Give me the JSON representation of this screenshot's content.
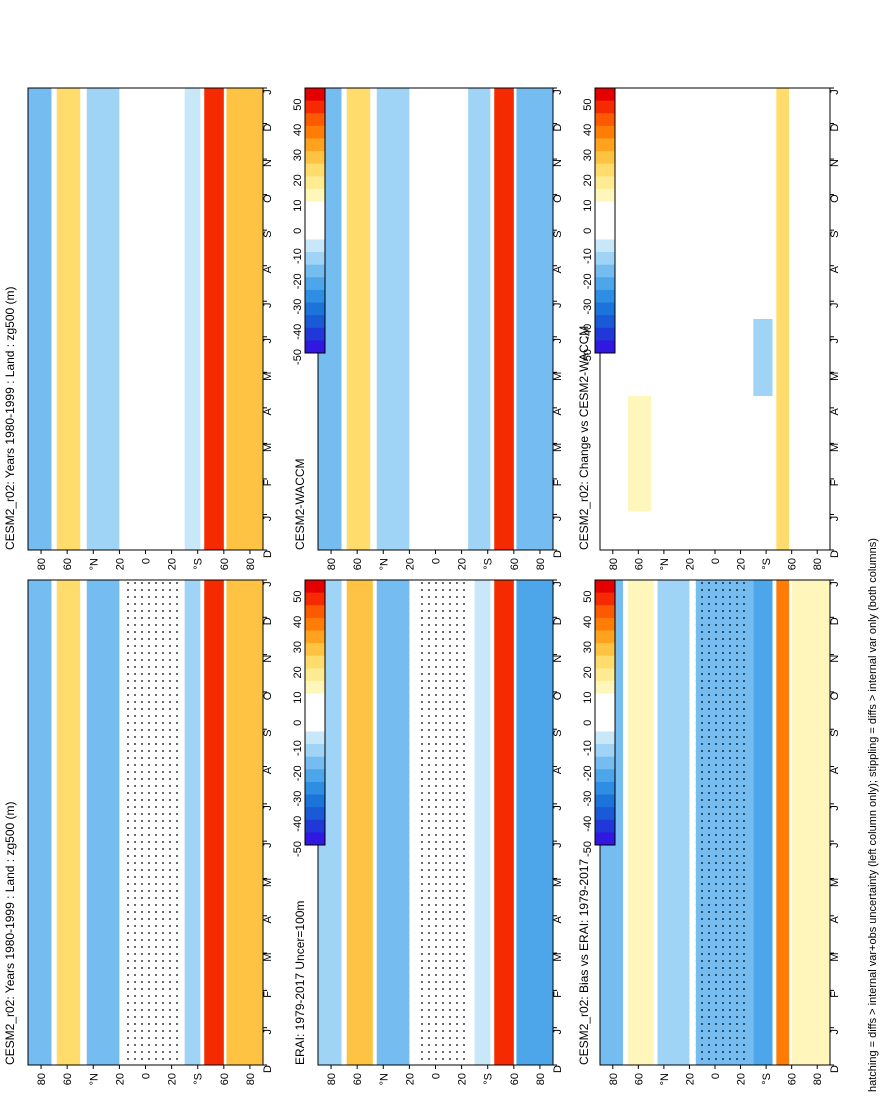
{
  "figure": {
    "caption": "hatching = diffs > internal var+obs uncertainty (left column only); stippling = diffs > internal var only (both columns)"
  },
  "colors": {
    "scale": [
      "#e50000",
      "#f52a00",
      "#fb5a00",
      "#ff7d07",
      "#ffa31f",
      "#ffc344",
      "#ffdc6b",
      "#ffec92",
      "#fff6bb",
      "#ffffff",
      "#ffffff",
      "#ffffff",
      "#c8e8fa",
      "#9fd4f6",
      "#75bdf0",
      "#4ea6ea",
      "#2e8ee3",
      "#1c74db",
      "#1a5ad6",
      "#2038d8",
      "#3018e0"
    ],
    "stipple": "#000000"
  },
  "chart_data": [
    {
      "id": "p1",
      "type": "heatmap",
      "title": "CESM2_r02: Years 1980-1999 : Land : zg500 (m)",
      "x_ticks": [
        "D",
        "J",
        "F",
        "M",
        "A",
        "M",
        "J",
        "J",
        "A",
        "S",
        "O",
        "N",
        "D",
        "J"
      ],
      "y_ticks": [
        "80",
        "60",
        "°N",
        "20",
        "0",
        "20",
        "°S",
        "60",
        "80"
      ],
      "stippled": true,
      "regions": [
        {
          "label": "north-polar",
          "lat_range": [
            90,
            72
          ],
          "months": [
            0,
            12
          ],
          "value": -18
        },
        {
          "label": "north-midlat",
          "lat_range": [
            68,
            50
          ],
          "months": [
            0,
            12
          ],
          "value": 20
        },
        {
          "label": "north-subtropics",
          "lat_range": [
            45,
            20
          ],
          "months": [
            0,
            12
          ],
          "value": -18
        },
        {
          "label": "tropics",
          "lat_range": [
            15,
            -20
          ],
          "months": [
            0,
            12
          ],
          "value": 0
        },
        {
          "label": "south-subpolar",
          "lat_range": [
            -30,
            -42
          ],
          "months": [
            0,
            12
          ],
          "value": -15
        },
        {
          "label": "south-highlat",
          "lat_range": [
            -45,
            -60
          ],
          "months": [
            0,
            12
          ],
          "value": 45
        },
        {
          "label": "south-polar",
          "lat_range": [
            -62,
            -90
          ],
          "months": [
            0,
            12
          ],
          "value": 25
        }
      ]
    },
    {
      "id": "p2",
      "type": "heatmap",
      "title": "CESM2_r02: Years 1980-1999 : Land : zg500 (m)",
      "x_ticks": [
        "D",
        "J",
        "F",
        "M",
        "A",
        "M",
        "J",
        "J",
        "A",
        "S",
        "O",
        "N",
        "D",
        "J"
      ],
      "y_ticks": [
        "80",
        "60",
        "°N",
        "20",
        "0",
        "20",
        "°S",
        "60",
        "80"
      ],
      "stippled": false,
      "regions": [
        {
          "label": "north-polar",
          "lat_range": [
            90,
            72
          ],
          "months": [
            0,
            12
          ],
          "value": -18
        },
        {
          "label": "north-midlat",
          "lat_range": [
            68,
            50
          ],
          "months": [
            0,
            12
          ],
          "value": 20
        },
        {
          "label": "north-subtropics",
          "lat_range": [
            45,
            20
          ],
          "months": [
            0,
            12
          ],
          "value": -15
        },
        {
          "label": "tropics",
          "lat_range": [
            15,
            -20
          ],
          "months": [
            0,
            12
          ],
          "value": 0
        },
        {
          "label": "south-subpolar",
          "lat_range": [
            -30,
            -42
          ],
          "months": [
            0,
            12
          ],
          "value": -12
        },
        {
          "label": "south-highlat",
          "lat_range": [
            -45,
            -60
          ],
          "months": [
            0,
            12
          ],
          "value": 45
        },
        {
          "label": "south-polar",
          "lat_range": [
            -62,
            -90
          ],
          "months": [
            0,
            12
          ],
          "value": 25
        }
      ]
    },
    {
      "id": "p3",
      "type": "heatmap",
      "title": "ERAI: 1979-2017 Uncer=100m",
      "x_ticks": [
        "D",
        "J",
        "F",
        "M",
        "A",
        "M",
        "J",
        "J",
        "A",
        "S",
        "O",
        "N",
        "D",
        "J"
      ],
      "y_ticks": [
        "80",
        "60",
        "°N",
        "20",
        "0",
        "20",
        "°S",
        "60",
        "80"
      ],
      "stippled": true,
      "regions": [
        {
          "label": "north-polar",
          "lat_range": [
            90,
            72
          ],
          "months": [
            0,
            12
          ],
          "value": -15
        },
        {
          "label": "north-midlat",
          "lat_range": [
            68,
            48
          ],
          "months": [
            0,
            12
          ],
          "value": 25
        },
        {
          "label": "north-subtropics",
          "lat_range": [
            45,
            20
          ],
          "months": [
            0,
            12
          ],
          "value": -20
        },
        {
          "label": "tropics",
          "lat_range": [
            15,
            -20
          ],
          "months": [
            0,
            12
          ],
          "value": 0
        },
        {
          "label": "south-subpolar",
          "lat_range": [
            -30,
            -42
          ],
          "months": [
            0,
            12
          ],
          "value": -10
        },
        {
          "label": "south-highlat",
          "lat_range": [
            -45,
            -60
          ],
          "months": [
            0,
            12
          ],
          "value": 45
        },
        {
          "label": "south-polar",
          "lat_range": [
            -62,
            -90
          ],
          "months": [
            0,
            12
          ],
          "value": -25
        }
      ]
    },
    {
      "id": "p4",
      "type": "heatmap",
      "title": "CESM2-WACCM",
      "x_ticks": [
        "D",
        "J",
        "F",
        "M",
        "A",
        "M",
        "J",
        "J",
        "A",
        "S",
        "O",
        "N",
        "D",
        "J"
      ],
      "y_ticks": [
        "80",
        "60",
        "°N",
        "20",
        "0",
        "20",
        "°S",
        "60",
        "80"
      ],
      "stippled": false,
      "regions": [
        {
          "label": "north-polar",
          "lat_range": [
            90,
            72
          ],
          "months": [
            0,
            12
          ],
          "value": -18
        },
        {
          "label": "north-midlat",
          "lat_range": [
            68,
            50
          ],
          "months": [
            0,
            12
          ],
          "value": 20
        },
        {
          "label": "north-subtropics",
          "lat_range": [
            45,
            20
          ],
          "months": [
            0,
            12
          ],
          "value": -15
        },
        {
          "label": "tropics",
          "lat_range": [
            15,
            -20
          ],
          "months": [
            0,
            12
          ],
          "value": 0
        },
        {
          "label": "south-subpolar",
          "lat_range": [
            -25,
            -42
          ],
          "months": [
            0,
            12
          ],
          "value": -15
        },
        {
          "label": "south-highlat",
          "lat_range": [
            -45,
            -60
          ],
          "months": [
            0,
            12
          ],
          "value": 45
        },
        {
          "label": "south-polar",
          "lat_range": [
            -62,
            -90
          ],
          "months": [
            0,
            12
          ],
          "value": -20
        }
      ]
    },
    {
      "id": "p5",
      "type": "heatmap",
      "title": "CESM2_r02: Bias vs ERAI: 1979-2017",
      "x_ticks": [
        "D",
        "J",
        "F",
        "M",
        "A",
        "M",
        "J",
        "J",
        "A",
        "S",
        "O",
        "N",
        "D",
        "J"
      ],
      "y_ticks": [
        "80",
        "60",
        "°N",
        "20",
        "0",
        "20",
        "°S",
        "60",
        "80"
      ],
      "stippled": true,
      "regions": [
        {
          "label": "north-polar",
          "lat_range": [
            90,
            72
          ],
          "months": [
            0,
            12
          ],
          "value": -20
        },
        {
          "label": "north-midlat",
          "lat_range": [
            68,
            48
          ],
          "months": [
            0,
            12
          ],
          "value": 10
        },
        {
          "label": "north-subtropics",
          "lat_range": [
            45,
            20
          ],
          "months": [
            0,
            12
          ],
          "value": -15
        },
        {
          "label": "tropics",
          "lat_range": [
            15,
            -30
          ],
          "months": [
            0,
            12
          ],
          "value": -18
        },
        {
          "label": "south-subpolar",
          "lat_range": [
            -30,
            -45
          ],
          "months": [
            0,
            12
          ],
          "value": -25
        },
        {
          "label": "south-highlat",
          "lat_range": [
            -48,
            -58
          ],
          "months": [
            0,
            12
          ],
          "value": 35
        },
        {
          "label": "south-polar",
          "lat_range": [
            -60,
            -90
          ],
          "months": [
            0,
            12
          ],
          "value": 10
        }
      ]
    },
    {
      "id": "p6",
      "type": "heatmap",
      "title": "CESM2_r02: Change vs CESM2-WACCM",
      "x_ticks": [
        "D",
        "J",
        "F",
        "M",
        "A",
        "M",
        "J",
        "J",
        "A",
        "S",
        "O",
        "N",
        "D",
        "J"
      ],
      "y_ticks": [
        "80",
        "60",
        "°N",
        "20",
        "0",
        "20",
        "°S",
        "60",
        "80"
      ],
      "stippled": false,
      "regions": [
        {
          "label": "north-polar",
          "lat_range": [
            90,
            72
          ],
          "months": [
            0,
            12
          ],
          "value": 0
        },
        {
          "label": "north-midlat",
          "lat_range": [
            68,
            50
          ],
          "months": [
            1,
            4
          ],
          "value": 10
        },
        {
          "label": "north-subtropics",
          "lat_range": [
            45,
            20
          ],
          "months": [
            0,
            12
          ],
          "value": 0
        },
        {
          "label": "tropics",
          "lat_range": [
            15,
            -25
          ],
          "months": [
            0,
            12
          ],
          "value": 0
        },
        {
          "label": "south-subpolar",
          "lat_range": [
            -30,
            -45
          ],
          "months": [
            4,
            6
          ],
          "value": -15
        },
        {
          "label": "south-highlat",
          "lat_range": [
            -48,
            -58
          ],
          "months": [
            0,
            12
          ],
          "value": 20
        },
        {
          "label": "south-polar",
          "lat_range": [
            -60,
            -90
          ],
          "months": [
            0,
            12
          ],
          "value": 0
        }
      ]
    }
  ],
  "colorbars": [
    {
      "id": "cb1",
      "panel": "p1",
      "ticks": [
        "50",
        "40",
        "30",
        "20",
        "10",
        "0",
        "-10",
        "-20",
        "-30",
        "-40",
        "-50"
      ]
    },
    {
      "id": "cb2",
      "panel": "p2",
      "ticks": [
        "50",
        "40",
        "30",
        "20",
        "10",
        "0",
        "-10",
        "-20",
        "-30",
        "-40",
        "-50"
      ]
    },
    {
      "id": "cb3",
      "panel": "p3",
      "ticks": [
        "50",
        "40",
        "30",
        "20",
        "10",
        "0",
        "-10",
        "-20",
        "-30",
        "-40",
        "-50"
      ]
    },
    {
      "id": "cb4",
      "panel": "p4",
      "ticks": [
        "50",
        "40",
        "30",
        "20",
        "10",
        "0",
        "-10",
        "-20",
        "-30",
        "-40",
        "-50"
      ]
    },
    {
      "id": "cb5",
      "panel": "p5",
      "ticks": [
        "50",
        "40",
        "30",
        "20",
        "10",
        "0",
        "-10",
        "-20",
        "-30",
        "-40",
        "-50"
      ]
    },
    {
      "id": "cb6",
      "panel": "p6",
      "ticks": [
        "50",
        "40",
        "30",
        "20",
        "10",
        "0",
        "-10",
        "-20",
        "-30",
        "-40",
        "-50"
      ]
    }
  ]
}
